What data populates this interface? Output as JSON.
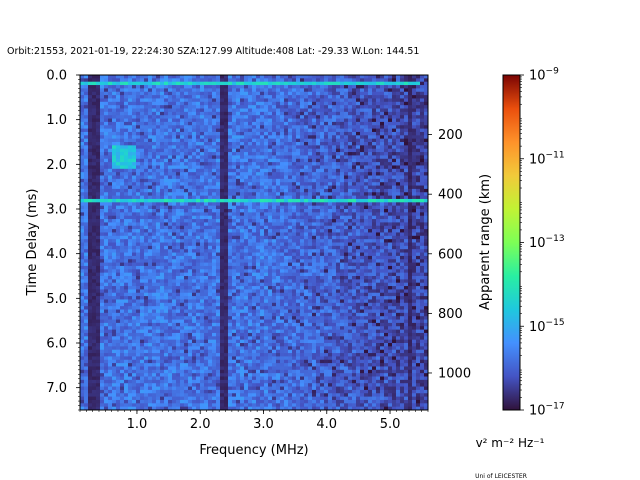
{
  "chart_data": {
    "type": "heatmap",
    "title": "Orbit:21553, 2021-01-19, 22:24:30 SZA:127.99 Altitude:408 Lat: -29.33 W.Lon: 144.51",
    "xlabel": "Frequency (MHz)",
    "ylabel": "Time Delay (ms)",
    "y2label": "Apparent range (km)",
    "xlim": [
      0.1,
      5.6
    ],
    "ylim": [
      7.5,
      0.0
    ],
    "x_ticks": [
      1.0,
      2.0,
      3.0,
      4.0,
      5.0
    ],
    "x_tick_labels": [
      "1.0",
      "2.0",
      "3.0",
      "4.0",
      "5.0"
    ],
    "y_ticks": [
      0.0,
      1.0,
      2.0,
      3.0,
      4.0,
      5.0,
      6.0,
      7.0
    ],
    "y_tick_labels": [
      "0.0",
      "1.0",
      "2.0",
      "3.0",
      "4.0",
      "5.0",
      "6.0",
      "7.0"
    ],
    "y2_ticks": [
      200,
      400,
      600,
      800,
      1000
    ],
    "y2_tick_labels": [
      "200",
      "400",
      "600",
      "800",
      "1000"
    ],
    "range_km_per_ms": 149.9,
    "colorbar": {
      "scale": "log",
      "range": [
        1e-17,
        1e-09
      ],
      "tick_exponents": [
        -17,
        -15,
        -13,
        -11,
        -9
      ],
      "tick_labels": [
        "10−17",
        "10−15",
        "10−13",
        "10−11",
        "10−9"
      ],
      "units_label": "v² m⁻² Hz⁻¹",
      "colormap": "turbo"
    },
    "features": {
      "surface_echo_delay_ms": 2.8,
      "direct_signal_delay_ms": 0.2,
      "dark_frequency_lines_mhz": [
        0.3,
        0.38,
        2.38,
        5.3
      ]
    },
    "credit": "Uni of LEICESTER"
  }
}
